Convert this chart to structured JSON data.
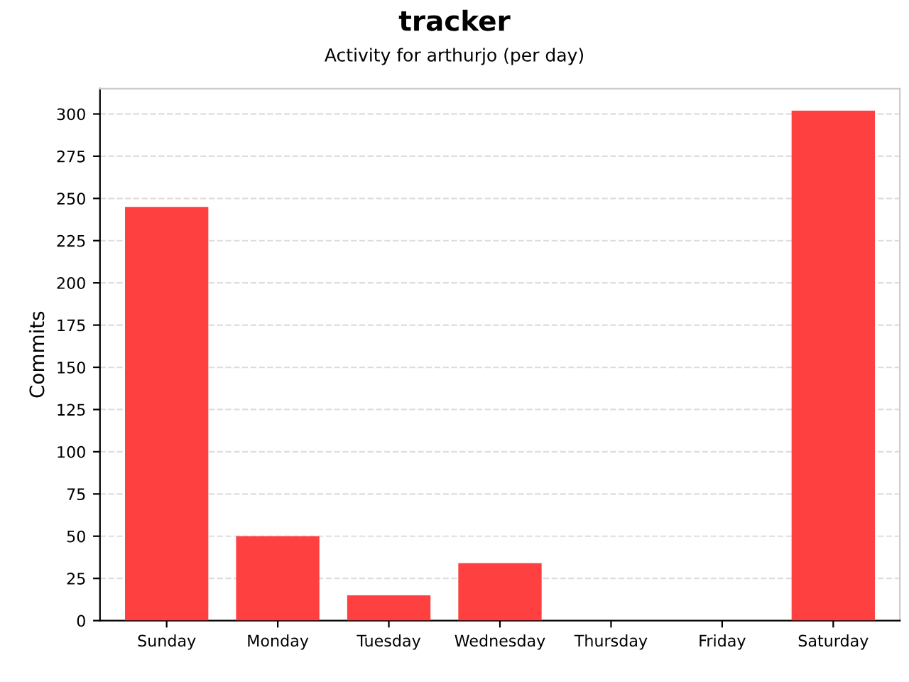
{
  "chart_data": {
    "type": "bar",
    "title": "tracker",
    "subtitle": "Activity for arthurjo (per day)",
    "ylabel": "Commits",
    "categories": [
      "Sunday",
      "Monday",
      "Tuesday",
      "Wednesday",
      "Thursday",
      "Friday",
      "Saturday"
    ],
    "values": [
      245,
      50,
      15,
      34,
      0,
      0,
      302
    ],
    "color": "#ff4040",
    "ylim": [
      0,
      315
    ],
    "yticks": [
      0,
      25,
      50,
      75,
      100,
      125,
      150,
      175,
      200,
      225,
      250,
      275,
      300
    ],
    "grid": "y"
  }
}
